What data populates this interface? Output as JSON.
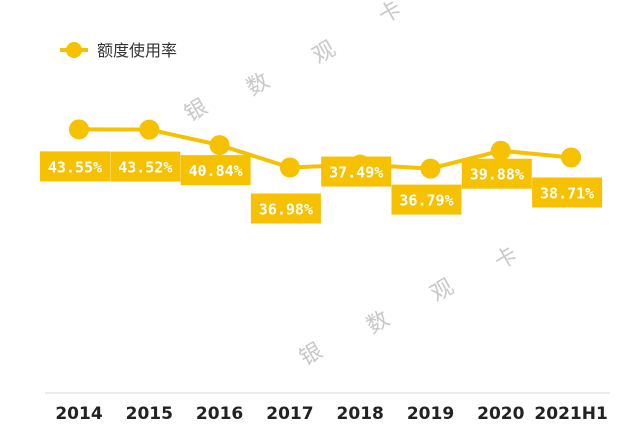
{
  "chart_data": {
    "type": "line",
    "title": "",
    "xlabel": "",
    "ylabel": "",
    "categories": [
      "2014",
      "2015",
      "2016",
      "2017",
      "2018",
      "2019",
      "2020",
      "2021H1"
    ],
    "series": [
      {
        "name": "额度使用率",
        "values": [
          43.55,
          43.52,
          40.84,
          36.98,
          37.49,
          36.79,
          39.88,
          38.71
        ],
        "labels": [
          "43.55%",
          "43.52%",
          "40.84%",
          "36.98%",
          "37.49%",
          "36.79%",
          "39.88%",
          "38.71%"
        ]
      }
    ],
    "ylim": [
      20,
      50
    ],
    "grid": false,
    "legend_position": "top-left",
    "color": "#f5c100"
  },
  "watermark": {
    "chars": [
      "银",
      "数",
      "观",
      "卡"
    ]
  }
}
